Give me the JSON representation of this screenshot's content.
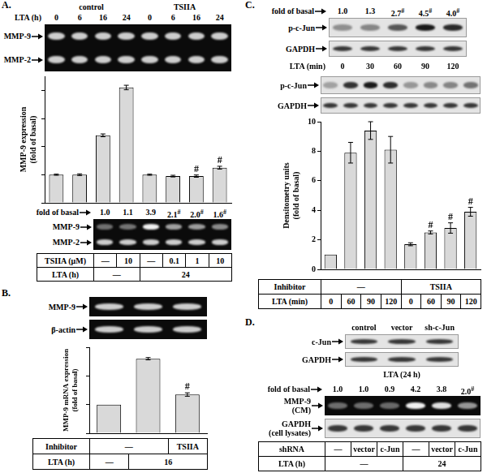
{
  "chart_data": [
    {
      "type": "bar",
      "y_label": "MMP-9 expression (fold of basal)",
      "categories": [
        null,
        null,
        null,
        null,
        null,
        null,
        null,
        null
      ],
      "values": [
        1.0,
        1.0,
        2.4,
        4.1,
        1.0,
        0.95,
        0.95,
        1.25
      ],
      "errors": [
        0.02,
        0.03,
        0.05,
        0.08,
        0.02,
        0.03,
        0.04,
        0.05
      ],
      "significance": [
        null,
        null,
        null,
        null,
        null,
        null,
        "#",
        "#"
      ],
      "ylim": [
        0,
        4.5
      ],
      "yticks": [
        0,
        1,
        2,
        3,
        4
      ],
      "tick_labels": false,
      "grid": false,
      "color": "#d9d9d9"
    },
    {
      "type": "bar",
      "y_label": "MMP-9 mRNA expression (fold of basal)",
      "categories": [
        null,
        null,
        null
      ],
      "values": [
        1.0,
        2.6,
        1.35
      ],
      "errors": [
        0.0,
        0.04,
        0.06
      ],
      "significance": [
        null,
        null,
        "#"
      ],
      "ylim": [
        0,
        3
      ],
      "yticks": [
        0,
        1,
        2,
        3
      ],
      "tick_labels": false,
      "grid": false,
      "color": "#d9d9d9"
    },
    {
      "type": "bar",
      "y_label": "Densitometry units (fold of basal)",
      "categories": [
        null,
        null,
        null,
        null,
        null,
        null,
        null,
        null
      ],
      "values": [
        1.0,
        7.9,
        9.4,
        8.1,
        1.7,
        2.5,
        2.8,
        3.9
      ],
      "errors": [
        0.0,
        0.7,
        0.6,
        0.9,
        0.1,
        0.1,
        0.35,
        0.3
      ],
      "significance": [
        null,
        null,
        null,
        null,
        null,
        "#",
        "#",
        "#"
      ],
      "ylim": [
        0,
        10
      ],
      "yticks": [
        0,
        2,
        4,
        6,
        8,
        10
      ],
      "tick_labels": "y",
      "grid": false,
      "color": "#d9d9d9"
    }
  ],
  "panels": [
    {
      "label": "A.",
      "groups": [
        "control",
        "TSIIA"
      ],
      "lane_label": "LTA (h)",
      "lanes": [
        "0",
        "6",
        "16",
        "24",
        "0",
        "6",
        "16",
        "24"
      ],
      "gel_bands": [
        "MMP-9",
        "MMP-2"
      ],
      "fold": {
        "label": "fold of basal",
        "values": [
          1.0,
          1.1,
          3.9,
          2.1,
          2.0,
          1.6
        ],
        "value_labels": [
          "1.0",
          "1.1",
          "3.9",
          "2.1",
          "2.0",
          "1.6"
        ],
        "significance": [
          null,
          null,
          null,
          "#",
          "#",
          "#"
        ]
      },
      "gel2_bands": [
        "MMP-9",
        "MMP-2"
      ],
      "table": [
        {
          "label": "TSIIA (μM)",
          "cells": [
            "—",
            "10",
            "—",
            "0.1",
            "1",
            "10"
          ]
        },
        {
          "label": "LTA (h)",
          "cells": [
            "—",
            null,
            "24",
            null,
            null,
            null
          ]
        }
      ]
    },
    {
      "label": "B.",
      "gel_bands": [
        "MMP-9",
        "β-actin"
      ],
      "table": [
        {
          "label": "Inhibitor",
          "cells": [
            "—",
            null,
            "TSIIA"
          ]
        },
        {
          "label": "LTA (h)",
          "cells": [
            "—",
            "16",
            null
          ]
        }
      ]
    },
    {
      "label": "C.",
      "fold": {
        "label": "fold of basal",
        "values": [
          1.0,
          1.3,
          2.7,
          4.5,
          4.0
        ],
        "value_labels": [
          "1.0",
          "1.3",
          "2.7",
          "4.5",
          "4.0"
        ],
        "significance": [
          null,
          null,
          "#",
          "#",
          "#"
        ]
      },
      "blot1_bands": [
        "p-c-Jun",
        "GAPDH"
      ],
      "lane_label": "LTA (min)",
      "lanes": [
        "0",
        "30",
        "60",
        "90",
        "120"
      ],
      "blot2_bands": [
        "p-c-Jun",
        "GAPDH"
      ],
      "table": [
        {
          "label": "Inhibitor",
          "cells": [
            "—",
            null,
            null,
            null,
            "TSIIA",
            null,
            null,
            null
          ]
        },
        {
          "label": "LTA (min)",
          "cells": [
            "0",
            "60",
            "90",
            "120",
            "0",
            "60",
            "90",
            "120"
          ]
        }
      ]
    },
    {
      "label": "D.",
      "lanes": [
        "control",
        "vector",
        "sh-c-Jun"
      ],
      "blot1_bands": [
        "c-Jun",
        "GAPDH"
      ],
      "blot1_caption": "LTA (24 h)",
      "fold": {
        "label": "fold of basal",
        "values": [
          1.0,
          1.0,
          0.9,
          4.2,
          3.8,
          2.0
        ],
        "value_labels": [
          "1.0",
          "1.0",
          "0.9",
          "4.2",
          "3.8",
          "2.0"
        ],
        "significance": [
          null,
          null,
          null,
          null,
          null,
          "#"
        ]
      },
      "blot2_bands": [
        "MMP-9 (CM)",
        "GAPDH (cell lysates)"
      ],
      "table": [
        {
          "label": "shRNA",
          "cells": [
            "—",
            "vector",
            "c-Jun",
            "—",
            "vector",
            "c-Jun"
          ]
        },
        {
          "label": "LTA (h)",
          "cells": [
            "—",
            null,
            null,
            "24",
            null,
            null
          ]
        }
      ]
    }
  ]
}
